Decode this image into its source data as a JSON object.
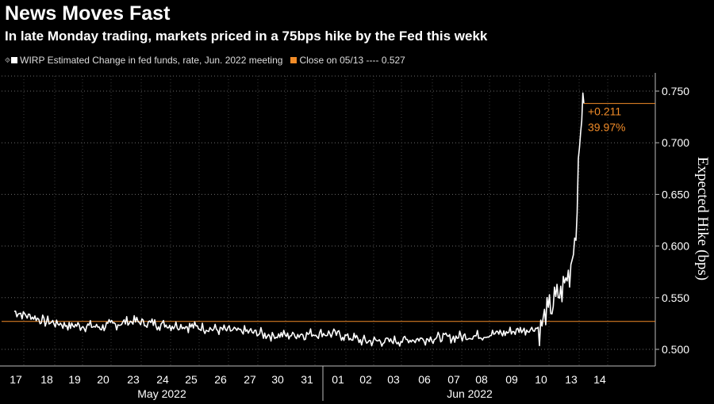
{
  "header": {
    "title": "News Moves Fast",
    "subtitle": "In late Monday trading, markets priced in a 75bps hike by the Fed this wekk"
  },
  "legend": {
    "series_marker": "⯑",
    "series_label": "WIRP Estimated Change in fed funds, rate, Jun. 2022 meeting",
    "close_label": "Close on 05/13 ---- 0.527"
  },
  "colors": {
    "background": "#000000",
    "line": "#ffffff",
    "close": "#f28c28",
    "grid": "#6a6a6a"
  },
  "chart_data": {
    "type": "line",
    "title": "News Moves Fast",
    "subtitle": "In late Monday trading, markets priced in a 75bps hike by the Fed this wekk",
    "ylabel": "Expected Hike (bps)",
    "ylim": [
      0.495,
      0.755
    ],
    "yticks": [
      "0.500",
      "0.550",
      "0.600",
      "0.650",
      "0.700",
      "0.750"
    ],
    "ytick_values": [
      0.5,
      0.55,
      0.6,
      0.65,
      0.7,
      0.75
    ],
    "y_axis_side": "right",
    "grid": true,
    "legend_position": "top-left",
    "categories": [
      "17",
      "18",
      "19",
      "20",
      "23",
      "24",
      "25",
      "26",
      "27",
      "30",
      "31",
      "01",
      "02",
      "03",
      "06",
      "07",
      "08",
      "09",
      "10",
      "13",
      "14"
    ],
    "month_labels": [
      "May 2022",
      "Jun 2022"
    ],
    "series": [
      {
        "name": "WIRP Estimated Change in fed funds, rate, Jun. 2022 meeting",
        "x": [
          "17",
          "18",
          "19",
          "20",
          "23",
          "24",
          "25",
          "26",
          "27",
          "30",
          "31",
          "01",
          "02",
          "03",
          "06",
          "07",
          "08",
          "09",
          "10",
          "13",
          "13",
          "13",
          "13",
          "13"
        ],
        "values": [
          0.537,
          0.527,
          0.523,
          0.522,
          0.527,
          0.524,
          0.522,
          0.519,
          0.517,
          0.513,
          0.515,
          0.515,
          0.508,
          0.508,
          0.51,
          0.512,
          0.513,
          0.517,
          0.521,
          0.56,
          0.575,
          0.615,
          0.72,
          0.738
        ]
      }
    ],
    "reference_line": {
      "label": "Close on 05/13",
      "value": 0.527
    },
    "annotations": [
      {
        "text": "+0.211",
        "y": 0.738
      },
      {
        "text": "39.97%",
        "y": 0.738
      }
    ]
  }
}
